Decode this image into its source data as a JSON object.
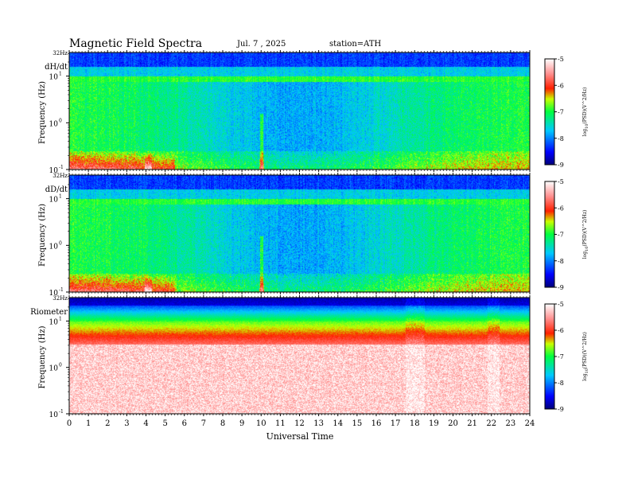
{
  "header": {
    "title": "Magnetic  Field  Spectra",
    "date": "Jul.  7  , 2025",
    "station": "station=ATH"
  },
  "chart_data": [
    {
      "type": "heatmap",
      "panel_label": "dH/dt",
      "ylabel": "Frequency  (Hz)",
      "y_scale": "log",
      "ylim": [
        0.1,
        32
      ],
      "y_top_label": "32Hz",
      "y_ticks": [
        {
          "base": "10",
          "exp": "1",
          "value": 10
        },
        {
          "base": "10",
          "exp": "0",
          "value": 1
        },
        {
          "base": "10",
          "exp": "-1",
          "value": 0.1
        }
      ],
      "x_ticks": [
        "0",
        "1",
        "2",
        "3",
        "4",
        "5",
        "6",
        "7",
        "8",
        "9",
        "10",
        "11",
        "12",
        "13",
        "14",
        "15",
        "16",
        "17",
        "18",
        "19",
        "20",
        "21",
        "22",
        "23",
        "24"
      ],
      "colorbar": {
        "label": "log10(PSD)(V^2/Hz)",
        "label_parts": {
          "a": "log",
          "sub": "10",
          "b": "(PSD)(V^2/Hz)"
        },
        "min": -9,
        "max": -5,
        "ticks": [
          "-5",
          "-6",
          "-7",
          "-8",
          "-9"
        ]
      },
      "profile": "noise"
    },
    {
      "type": "heatmap",
      "panel_label": "dD/dt",
      "ylabel": "Frequency  (Hz)",
      "y_scale": "log",
      "ylim": [
        0.1,
        32
      ],
      "y_top_label": "32Hz",
      "y_ticks": [
        {
          "base": "10",
          "exp": "1",
          "value": 10
        },
        {
          "base": "10",
          "exp": "0",
          "value": 1
        },
        {
          "base": "10",
          "exp": "-1",
          "value": 0.1
        }
      ],
      "x_ticks": [
        "0",
        "1",
        "2",
        "3",
        "4",
        "5",
        "6",
        "7",
        "8",
        "9",
        "10",
        "11",
        "12",
        "13",
        "14",
        "15",
        "16",
        "17",
        "18",
        "19",
        "20",
        "21",
        "22",
        "23",
        "24"
      ],
      "colorbar": {
        "label": "log10(PSD)(V^2/Hz)",
        "label_parts": {
          "a": "log",
          "sub": "10",
          "b": "(PSD)(V^2/Hz)"
        },
        "min": -9,
        "max": -5,
        "ticks": [
          "-5",
          "-6",
          "-7",
          "-8",
          "-9"
        ]
      },
      "profile": "noise"
    },
    {
      "type": "heatmap",
      "panel_label": "Riometer",
      "ylabel": "Frequency  (Hz)",
      "y_scale": "log",
      "ylim": [
        0.1,
        32
      ],
      "y_top_label": "32Hz",
      "y_ticks": [
        {
          "base": "10",
          "exp": "1",
          "value": 10
        },
        {
          "base": "10",
          "exp": "0",
          "value": 1
        },
        {
          "base": "10",
          "exp": "-1",
          "value": 0.1
        }
      ],
      "x_ticks": [
        "0",
        "1",
        "2",
        "3",
        "4",
        "5",
        "6",
        "7",
        "8",
        "9",
        "10",
        "11",
        "12",
        "13",
        "14",
        "15",
        "16",
        "17",
        "18",
        "19",
        "20",
        "21",
        "22",
        "23",
        "24"
      ],
      "xlabel": "Universal Time",
      "colorbar": {
        "label": "log10(PSD)(V^2/Hz)",
        "label_parts": {
          "a": "log",
          "sub": "10",
          "b": "(PSD)(V^2/Hz)"
        },
        "min": -9,
        "max": -5,
        "ticks": [
          "-5",
          "-6",
          "-7",
          "-8",
          "-9"
        ]
      },
      "profile": "riometer"
    }
  ]
}
